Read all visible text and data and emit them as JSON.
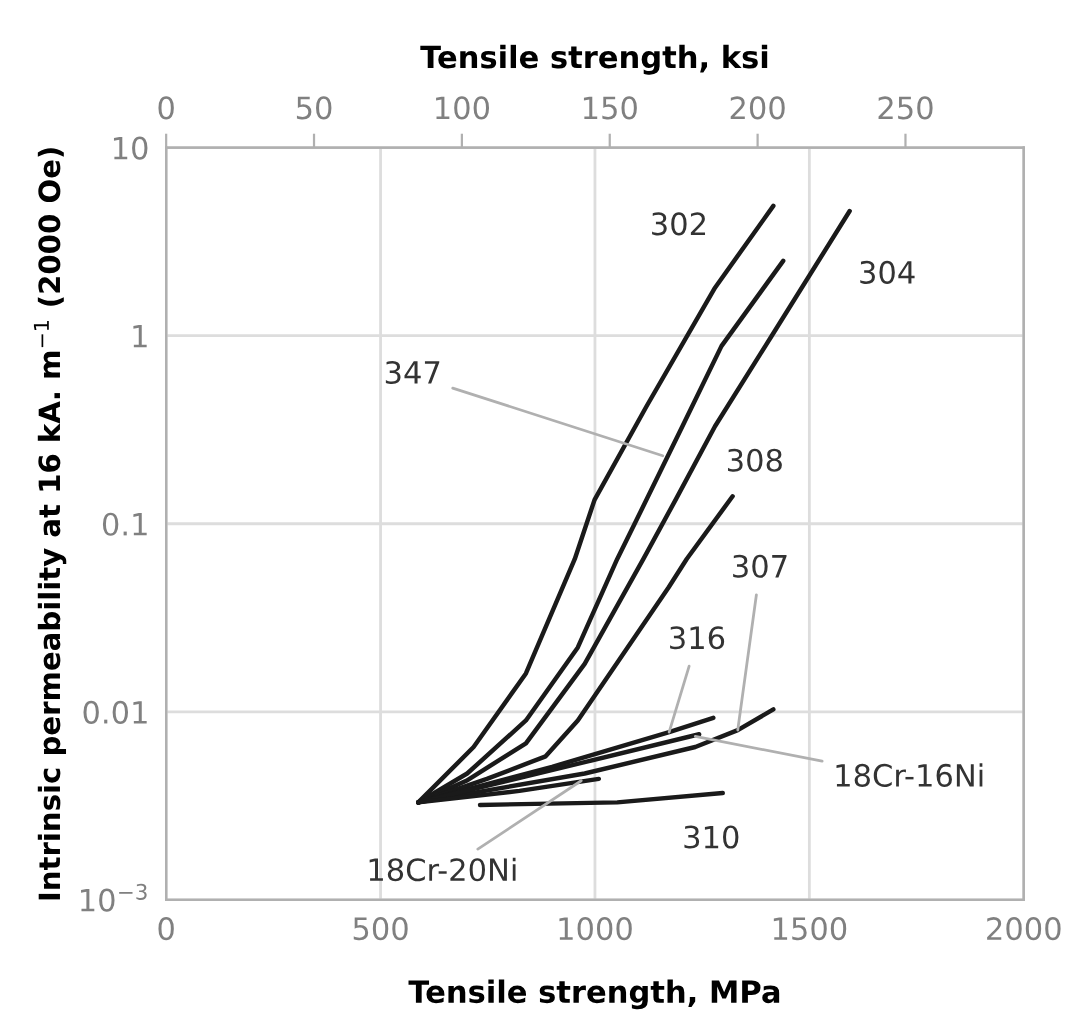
{
  "chart_data": {
    "type": "line",
    "xlabel": "Tensile strength, MPa",
    "x2label": "Tensile strength, ksi",
    "ylabel": "Intrinsic permeability at 16 kA. m$^{−1}$ (2000 Oe)",
    "log": "y",
    "grid": true,
    "xlim": [
      0,
      2000
    ],
    "xticks": [
      0,
      500,
      1000,
      1500,
      2000
    ],
    "x2lim": [
      0,
      290
    ],
    "x2ticks": [
      0,
      50,
      100,
      150,
      200,
      250
    ],
    "ylim": [
      0.001,
      10
    ],
    "yticks": [
      {
        "value": 0.001,
        "label": "10$^{−3}$"
      },
      0.01,
      0.1,
      1,
      10
    ],
    "series": [
      {
        "color": "#1a1a1a",
        "x": [
          588,
          717,
          839,
          953,
          999,
          1120,
          1280,
          1416
        ],
        "values": [
          0.0033,
          0.0065,
          0.016,
          0.065,
          0.134,
          0.42,
          1.8,
          4.9
        ]
      },
      {
        "color": "#1a1a1a",
        "x": [
          588,
          702,
          839,
          960,
          1052,
          1120,
          1204,
          1295,
          1439
        ],
        "values": [
          0.0033,
          0.0047,
          0.009,
          0.022,
          0.065,
          0.134,
          0.33,
          0.88,
          2.5
        ]
      },
      {
        "color": "#1a1a1a",
        "x": [
          588,
          700,
          839,
          976,
          1113,
          1188,
          1280,
          1416,
          1594
        ],
        "values": [
          0.0033,
          0.0043,
          0.0068,
          0.018,
          0.065,
          0.134,
          0.33,
          1.03,
          4.6
        ]
      },
      {
        "color": "#1a1a1a",
        "x": [
          588,
          748,
          885,
          960,
          1172,
          1214,
          1321
        ],
        "values": [
          0.0033,
          0.0044,
          0.0058,
          0.009,
          0.046,
          0.065,
          0.14
        ]
      },
      {
        "color": "#1a1a1a",
        "x": [
          588,
          976,
          1234,
          1333,
          1416
        ],
        "values": [
          0.0033,
          0.0047,
          0.0065,
          0.008,
          0.0103
        ]
      },
      {
        "color": "#1a1a1a",
        "x": [
          588,
          900,
          1173,
          1276
        ],
        "values": [
          0.0033,
          0.0051,
          0.0078,
          0.0093
        ]
      },
      {
        "color": "#1a1a1a",
        "x": [
          588,
          976,
          1243
        ],
        "values": [
          0.0033,
          0.0054,
          0.0076
        ]
      },
      {
        "color": "#1a1a1a",
        "x": [
          588,
          824,
          1009
        ],
        "values": [
          0.0033,
          0.0038,
          0.0044
        ]
      },
      {
        "color": "#1a1a1a",
        "x": [
          732,
          1052,
          1298
        ],
        "values": [
          0.0032,
          0.0033,
          0.0037
        ]
      }
    ],
    "annotations": [
      {
        "text": "302",
        "x": 1280,
        "y": 1.8
      },
      {
        "text": "304",
        "x": 1500,
        "y": 2.1
      },
      {
        "text": "347",
        "x": 1158,
        "y": 0.23
      },
      {
        "text": "308",
        "x": 1321,
        "y": 0.14
      },
      {
        "text": "307",
        "x": 1333,
        "y": 0.008
      },
      {
        "text": "316",
        "x": 1173,
        "y": 0.0078
      },
      {
        "text": "18Cr-16Ni",
        "x": 1234,
        "y": 0.0074
      },
      {
        "text": "18Cr-20Ni",
        "x": 968,
        "y": 0.0043
      },
      {
        "text": "310",
        "x": 1200,
        "y": 0.0036
      }
    ]
  }
}
